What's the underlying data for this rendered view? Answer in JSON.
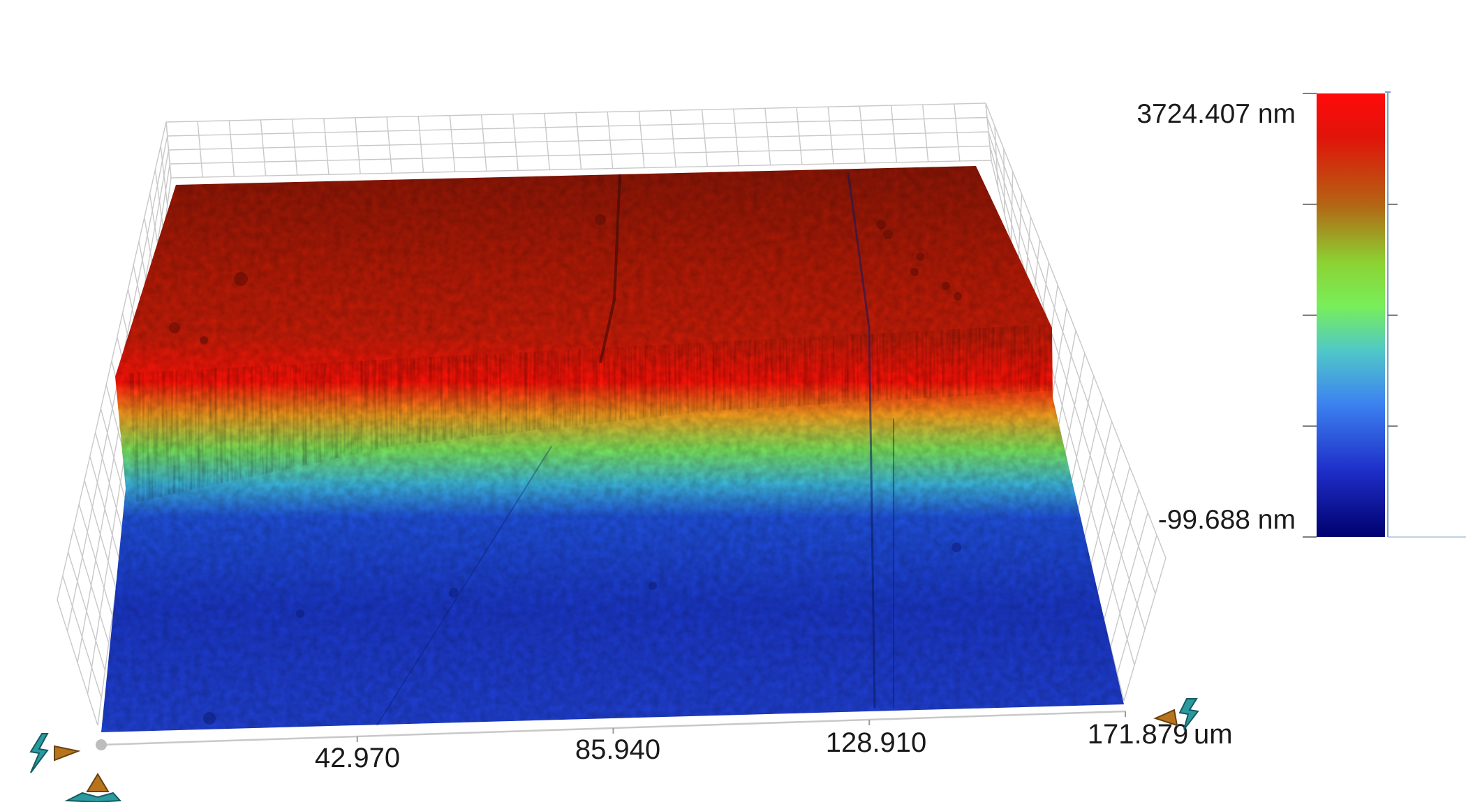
{
  "chart_data": {
    "type": "surface3d",
    "x_axis": {
      "ticks": [
        "42.970",
        "85.940",
        "128.910"
      ],
      "end_value": "171.879",
      "unit": "um",
      "range": [
        0,
        171.879
      ]
    },
    "z_scale": {
      "max_label": "3724.407 nm",
      "min_label": "-99.688 nm",
      "range": [
        -99.688,
        3724.407
      ],
      "colormap": [
        "#00006e",
        "#1e46d2",
        "#3ca0f0",
        "#78e678",
        "#8cd232",
        "#b46414",
        "#c81e0a",
        "#ff0a0a"
      ]
    },
    "surface": {
      "description": "step height profile",
      "upper_level_nm": 3724.407,
      "lower_level_nm": -99.688
    },
    "grid": true
  },
  "controls": {
    "rotate_x_icon": "rotate-x-icon",
    "rotate_y_icon": "rotate-y-icon",
    "rotate_z_icon": "rotate-z-icon"
  }
}
